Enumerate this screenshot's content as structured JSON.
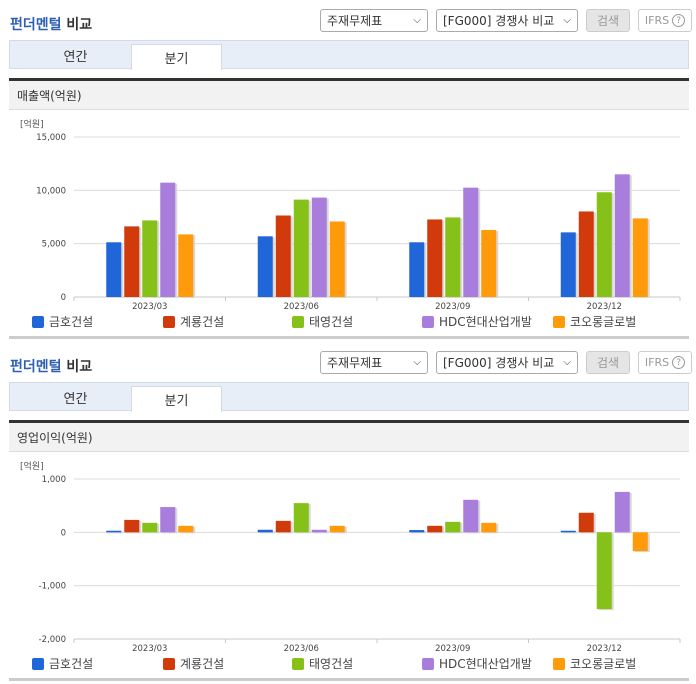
{
  "panels": [
    {
      "title_blue": "펀더멘털",
      "title_rest": " 비교",
      "statement_select": "주재무제표",
      "compare_select": "[FG000] 경쟁사 비교",
      "search_button": "검색",
      "ifrs_button": "IFRS",
      "help_glyph": "?",
      "tabs": [
        {
          "label": "연간",
          "active": false
        },
        {
          "label": "분기",
          "active": true
        }
      ],
      "section_title": "매출액(억원)",
      "unit": "[억원]"
    },
    {
      "title_blue": "펀더멘털",
      "title_rest": " 비교",
      "statement_select": "주재무제표",
      "compare_select": "[FG000] 경쟁사 비교",
      "search_button": "검색",
      "ifrs_button": "IFRS",
      "help_glyph": "?",
      "tabs": [
        {
          "label": "연간",
          "active": false
        },
        {
          "label": "분기",
          "active": true
        }
      ],
      "section_title": "영업이익(억원)",
      "unit": "[억원]"
    }
  ],
  "colors": {
    "금호건설": "#2166d9",
    "계룡건설": "#d13a0a",
    "태영건설": "#85c118",
    "HDC현대산업개발": "#a97ddb",
    "코오롱글로벌": "#ff9a0a"
  },
  "chart_data": [
    {
      "type": "bar",
      "title": "매출액(억원)",
      "ylabel": "[억원]",
      "xlabel": "",
      "categories": [
        "2023/03",
        "2023/06",
        "2023/09",
        "2023/12"
      ],
      "ylim": [
        0,
        15000
      ],
      "yticks": [
        0,
        5000,
        10000,
        15000
      ],
      "ytick_labels": [
        "0",
        "5,000",
        "10,000",
        "15,000"
      ],
      "grid": true,
      "legend_position": "bottom",
      "series": [
        {
          "name": "금호건설",
          "values": [
            5130,
            5690,
            5130,
            6060
          ]
        },
        {
          "name": "계룡건설",
          "values": [
            6620,
            7640,
            7270,
            8020
          ]
        },
        {
          "name": "태영건설",
          "values": [
            7180,
            9130,
            7460,
            9820
          ]
        },
        {
          "name": "HDC현대산업개발",
          "values": [
            10720,
            9320,
            10250,
            11500
          ]
        },
        {
          "name": "코오롱글로벌",
          "values": [
            5870,
            7080,
            6280,
            7370
          ]
        }
      ]
    },
    {
      "type": "bar",
      "title": "영업이익(억원)",
      "ylabel": "[억원]",
      "xlabel": "",
      "categories": [
        "2023/03",
        "2023/06",
        "2023/09",
        "2023/12"
      ],
      "ylim": [
        -2000,
        1000
      ],
      "yticks": [
        -2000,
        -1000,
        0,
        1000
      ],
      "ytick_labels": [
        "-2,000",
        "-1,000",
        "0",
        "1,000"
      ],
      "grid": true,
      "legend_position": "bottom",
      "series": [
        {
          "name": "금호건설",
          "values": [
            30,
            48,
            43,
            30
          ]
        },
        {
          "name": "계룡건설",
          "values": [
            233,
            215,
            122,
            367
          ]
        },
        {
          "name": "태영건설",
          "values": [
            178,
            548,
            197,
            -1439
          ]
        },
        {
          "name": "HDC현대산업개발",
          "values": [
            474,
            48,
            610,
            758
          ]
        },
        {
          "name": "코오롱글로벌",
          "values": [
            122,
            122,
            178,
            -352
          ]
        }
      ]
    }
  ]
}
